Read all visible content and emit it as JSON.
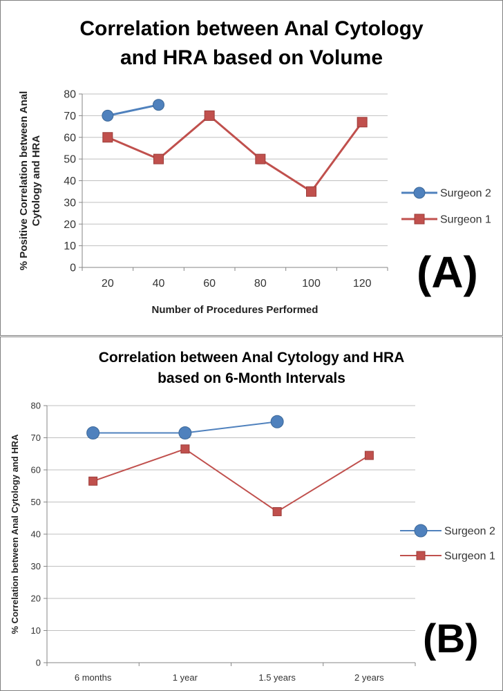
{
  "chart_data": [
    {
      "type": "line",
      "title_lines": [
        "Correlation between Anal Cytology",
        "and HRA based on Volume"
      ],
      "xlabel": "Number of Procedures Performed",
      "ylabel_lines": [
        "% Positive Correlation between Anal",
        "Cytology and HRA"
      ],
      "categories": [
        "20",
        "40",
        "60",
        "80",
        "100",
        "120"
      ],
      "ylim": [
        0,
        80
      ],
      "yticks": [
        "0",
        "10",
        "20",
        "30",
        "40",
        "50",
        "60",
        "70",
        "80"
      ],
      "grid": true,
      "legend_position": "right",
      "panel_label": "(A)",
      "series": [
        {
          "name": "Surgeon 2",
          "color": "#4f81bd",
          "marker": "circle",
          "values": [
            70,
            75,
            null,
            null,
            null,
            null
          ]
        },
        {
          "name": "Surgeon 1",
          "color": "#c0504d",
          "marker": "square",
          "values": [
            60,
            50,
            70,
            50,
            35,
            67
          ]
        }
      ]
    },
    {
      "type": "line",
      "title_lines": [
        "Correlation between Anal Cytology and HRA",
        "based on 6-Month Intervals"
      ],
      "xlabel": "",
      "ylabel_lines": [
        "% Correlation between Anal Cytology and HRA"
      ],
      "categories": [
        "6 months",
        "1 year",
        "1.5 years",
        "2 years"
      ],
      "ylim": [
        0,
        80
      ],
      "yticks": [
        "0",
        "10",
        "20",
        "30",
        "40",
        "50",
        "60",
        "70",
        "80"
      ],
      "grid": true,
      "legend_position": "right",
      "panel_label": "(B)",
      "series": [
        {
          "name": "Surgeon 2",
          "color": "#4f81bd",
          "marker": "circle",
          "values": [
            71.5,
            71.5,
            75,
            null
          ]
        },
        {
          "name": "Surgeon 1",
          "color": "#c0504d",
          "marker": "square",
          "values": [
            56.5,
            66.5,
            47,
            64.5
          ]
        }
      ]
    }
  ]
}
